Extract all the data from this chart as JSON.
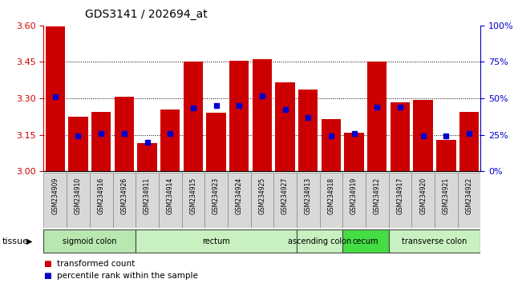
{
  "title": "GDS3141 / 202694_at",
  "samples": [
    "GSM234909",
    "GSM234910",
    "GSM234916",
    "GSM234926",
    "GSM234911",
    "GSM234914",
    "GSM234915",
    "GSM234923",
    "GSM234924",
    "GSM234925",
    "GSM234927",
    "GSM234913",
    "GSM234918",
    "GSM234919",
    "GSM234912",
    "GSM234917",
    "GSM234920",
    "GSM234921",
    "GSM234922"
  ],
  "bar_values": [
    3.595,
    3.225,
    3.245,
    3.305,
    3.115,
    3.255,
    3.45,
    3.24,
    3.455,
    3.46,
    3.365,
    3.335,
    3.215,
    3.16,
    3.45,
    3.285,
    3.295,
    3.13,
    3.245
  ],
  "blue_values": [
    3.305,
    3.145,
    3.155,
    3.155,
    3.12,
    3.155,
    3.26,
    3.27,
    3.27,
    3.31,
    3.255,
    3.22,
    3.145,
    3.155,
    3.265,
    3.265,
    3.145,
    3.145,
    3.155
  ],
  "y_min": 3.0,
  "y_max": 3.6,
  "y_ticks": [
    3.0,
    3.15,
    3.3,
    3.45,
    3.6
  ],
  "y2_ticks": [
    0,
    25,
    50,
    75,
    100
  ],
  "bar_color": "#cc0000",
  "blue_color": "#0000cc",
  "axis_color_left": "#cc0000",
  "axis_color_right": "#0000cc",
  "bar_width": 0.85,
  "group_defs": [
    {
      "label": "sigmoid colon",
      "indices": [
        0,
        1,
        2,
        3
      ],
      "color": "#b8e8b0"
    },
    {
      "label": "rectum",
      "indices": [
        4,
        5,
        6,
        7,
        8,
        9,
        10
      ],
      "color": "#c8f0c0"
    },
    {
      "label": "ascending colon",
      "indices": [
        11,
        12
      ],
      "color": "#c8f0c0"
    },
    {
      "label": "cecum",
      "indices": [
        13,
        14
      ],
      "color": "#44dd44"
    },
    {
      "label": "transverse colon",
      "indices": [
        15,
        16,
        17,
        18
      ],
      "color": "#c8f0c0"
    }
  ]
}
